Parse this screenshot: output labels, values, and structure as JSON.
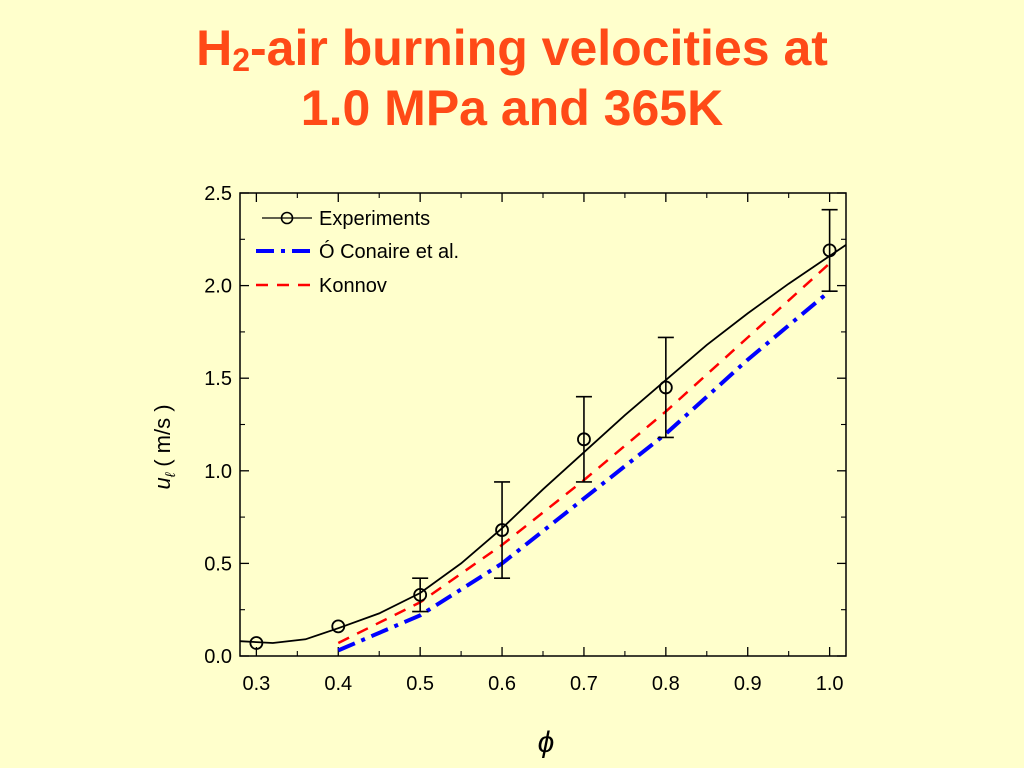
{
  "title": {
    "part1": "H",
    "sub": "2",
    "part2": "-air burning velocities at",
    "line2": "1.0 MPa and 365K"
  },
  "colors": {
    "background": "#FFFFCC",
    "title": "#FF4A17",
    "experiments": "#000000",
    "oconaire": "#0000FF",
    "konnov": "#FF0000"
  },
  "chart_data": {
    "type": "line",
    "xlabel": "ϕ",
    "ylabel_symbol": "u",
    "ylabel_subscript": "ℓ",
    "ylabel_unit": "( m/s )",
    "xlim": [
      0.28,
      1.02
    ],
    "ylim": [
      0.0,
      2.5
    ],
    "xticks": [
      "0.3",
      "0.4",
      "0.5",
      "0.6",
      "0.7",
      "0.8",
      "0.9",
      "1.0"
    ],
    "yticks": [
      "0.0",
      "0.5",
      "1.0",
      "1.5",
      "2.0",
      "2.5"
    ],
    "grid": false,
    "legend_position": "top-left",
    "series": [
      {
        "name": "Experiments",
        "style": "line+circle markers",
        "points": [
          {
            "x": 0.3,
            "y": 0.07,
            "err": 0.0
          },
          {
            "x": 0.4,
            "y": 0.16,
            "err": 0.0
          },
          {
            "x": 0.5,
            "y": 0.33,
            "err": 0.09
          },
          {
            "x": 0.6,
            "y": 0.68,
            "err": 0.26
          },
          {
            "x": 0.7,
            "y": 1.17,
            "err": 0.23
          },
          {
            "x": 0.8,
            "y": 1.45,
            "err": 0.27
          },
          {
            "x": 1.0,
            "y": 2.19,
            "err": 0.22
          }
        ],
        "fit": [
          [
            0.28,
            0.08
          ],
          [
            0.32,
            0.07
          ],
          [
            0.36,
            0.09
          ],
          [
            0.4,
            0.15
          ],
          [
            0.45,
            0.23
          ],
          [
            0.5,
            0.34
          ],
          [
            0.55,
            0.5
          ],
          [
            0.6,
            0.69
          ],
          [
            0.65,
            0.9
          ],
          [
            0.7,
            1.1
          ],
          [
            0.75,
            1.3
          ],
          [
            0.8,
            1.49
          ],
          [
            0.85,
            1.68
          ],
          [
            0.9,
            1.85
          ],
          [
            0.95,
            2.01
          ],
          [
            1.0,
            2.16
          ],
          [
            1.02,
            2.22
          ]
        ]
      },
      {
        "name": "Ó Conaire et al.",
        "style": "dash-dot",
        "points": [
          [
            0.4,
            0.03
          ],
          [
            0.5,
            0.22
          ],
          [
            0.6,
            0.5
          ],
          [
            0.7,
            0.85
          ],
          [
            0.8,
            1.2
          ],
          [
            0.9,
            1.6
          ],
          [
            1.0,
            1.97
          ]
        ]
      },
      {
        "name": "Konnov",
        "style": "dash",
        "points": [
          [
            0.4,
            0.07
          ],
          [
            0.5,
            0.29
          ],
          [
            0.6,
            0.6
          ],
          [
            0.7,
            0.95
          ],
          [
            0.8,
            1.32
          ],
          [
            0.9,
            1.72
          ],
          [
            1.0,
            2.12
          ]
        ]
      }
    ]
  }
}
